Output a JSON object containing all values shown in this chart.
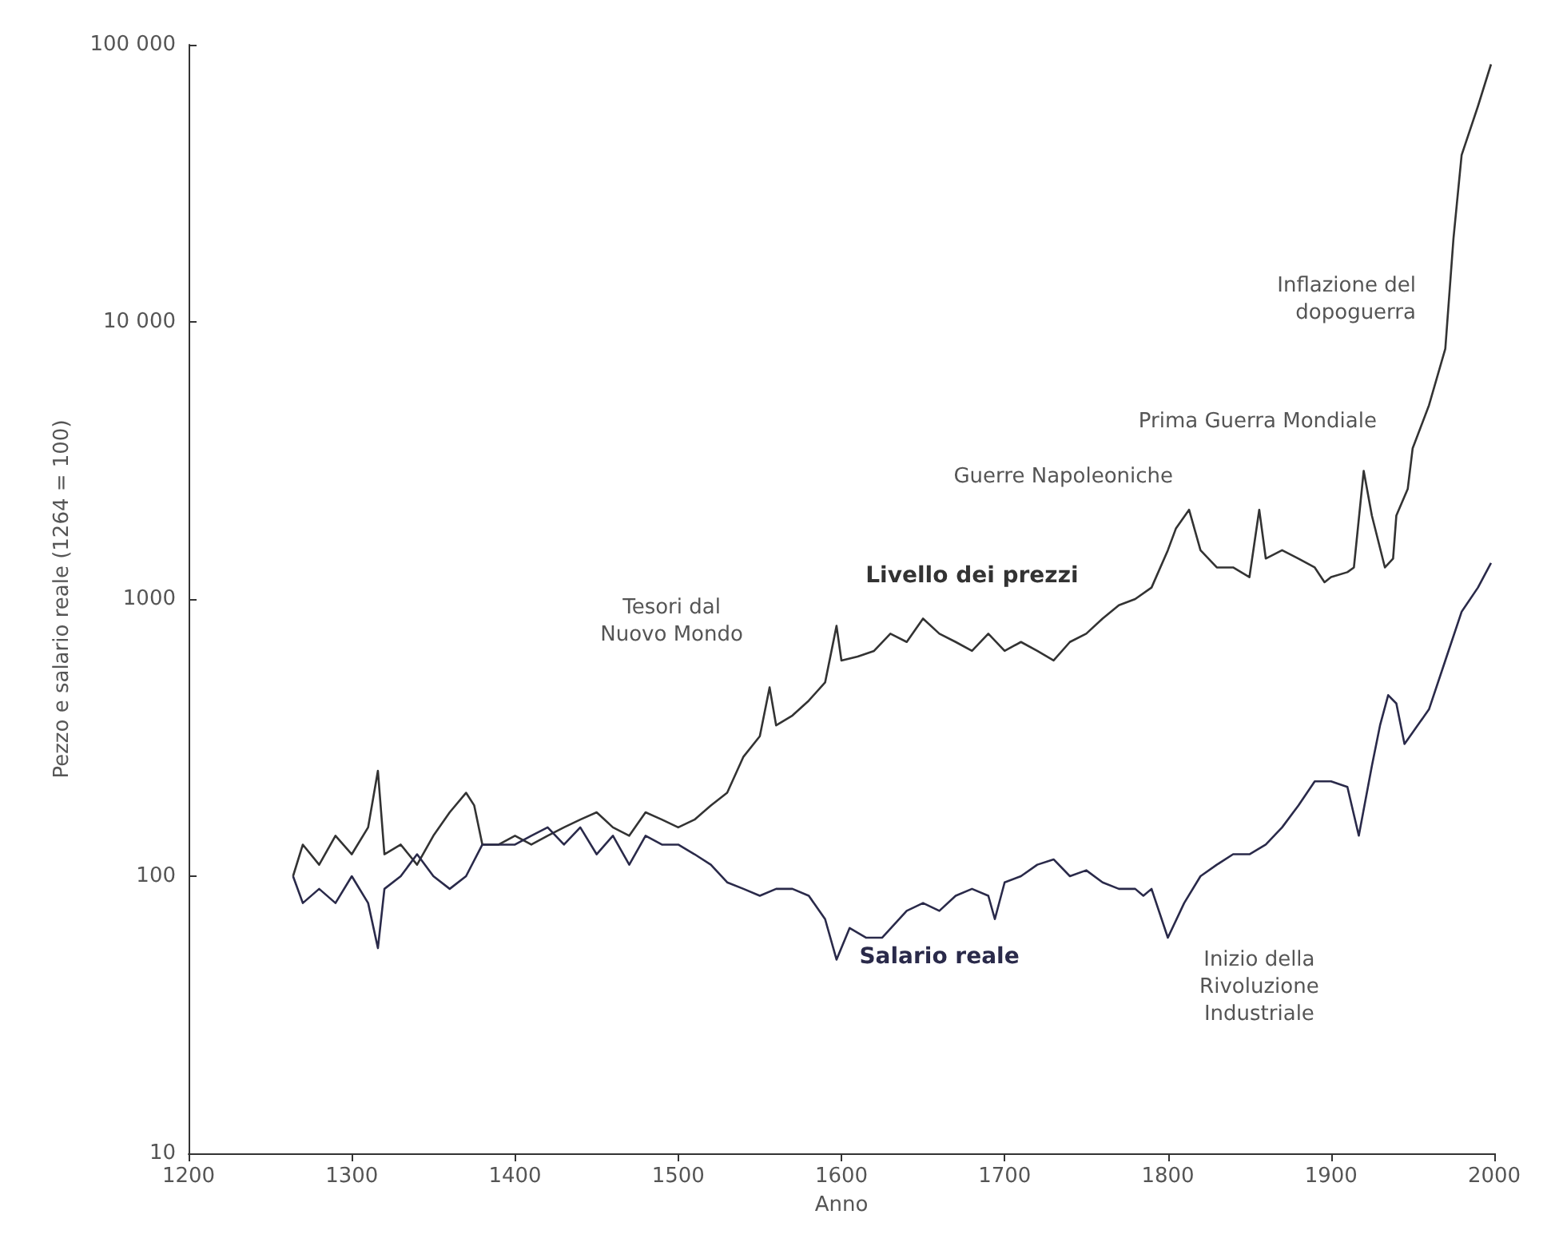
{
  "chart_data": {
    "type": "line",
    "xlabel": "Anno",
    "ylabel": "Pezzo e salario reale (1264 = 100)",
    "xlim": [
      1200,
      2000
    ],
    "xticks": [
      1200,
      1300,
      1400,
      1500,
      1600,
      1700,
      1800,
      1900,
      2000
    ],
    "ylim": [
      10,
      100000
    ],
    "yticks": [
      10,
      100,
      1000,
      {
        "value": 10000,
        "label": "10 000"
      },
      {
        "value": 100000,
        "label": "100 000"
      }
    ],
    "log": "y",
    "grid": false,
    "legend": false,
    "marker": "none",
    "line_style": "solid",
    "series": [
      {
        "name": "Livello dei prezzi",
        "color": "#333333",
        "x": [
          1264,
          1270,
          1280,
          1290,
          1300,
          1310,
          1316,
          1320,
          1330,
          1340,
          1350,
          1360,
          1370,
          1375,
          1380,
          1390,
          1400,
          1410,
          1420,
          1430,
          1440,
          1450,
          1460,
          1470,
          1480,
          1490,
          1500,
          1510,
          1520,
          1530,
          1540,
          1550,
          1556,
          1560,
          1570,
          1580,
          1590,
          1597,
          1600,
          1610,
          1620,
          1630,
          1640,
          1650,
          1660,
          1670,
          1680,
          1690,
          1700,
          1710,
          1720,
          1730,
          1740,
          1750,
          1760,
          1770,
          1780,
          1790,
          1800,
          1805,
          1813,
          1820,
          1830,
          1840,
          1850,
          1856,
          1860,
          1870,
          1880,
          1890,
          1896,
          1900,
          1910,
          1914,
          1920,
          1925,
          1933,
          1938,
          1940,
          1947,
          1950,
          1960,
          1970,
          1975,
          1980,
          1990,
          1998
        ],
        "values": [
          100,
          130,
          110,
          140,
          120,
          150,
          240,
          120,
          130,
          110,
          140,
          170,
          200,
          180,
          130,
          130,
          140,
          130,
          140,
          150,
          160,
          170,
          150,
          140,
          170,
          160,
          150,
          160,
          180,
          200,
          270,
          320,
          480,
          350,
          380,
          430,
          500,
          800,
          600,
          620,
          650,
          750,
          700,
          850,
          750,
          700,
          650,
          750,
          650,
          700,
          650,
          600,
          700,
          750,
          850,
          950,
          1000,
          1100,
          1500,
          1800,
          2100,
          1500,
          1300,
          1300,
          1200,
          2100,
          1400,
          1500,
          1400,
          1300,
          1150,
          1200,
          1250,
          1300,
          2900,
          2000,
          1300,
          1400,
          2000,
          2500,
          3500,
          5000,
          8000,
          20000,
          40000,
          60000,
          85000
        ]
      },
      {
        "name": "Salario reale",
        "color": "#2a2a4a",
        "x": [
          1264,
          1270,
          1280,
          1290,
          1300,
          1310,
          1316,
          1320,
          1330,
          1340,
          1350,
          1360,
          1370,
          1380,
          1390,
          1400,
          1410,
          1420,
          1430,
          1440,
          1450,
          1460,
          1470,
          1480,
          1490,
          1500,
          1510,
          1520,
          1530,
          1540,
          1550,
          1560,
          1570,
          1580,
          1590,
          1597,
          1605,
          1615,
          1625,
          1640,
          1650,
          1660,
          1670,
          1680,
          1690,
          1694,
          1700,
          1710,
          1720,
          1730,
          1740,
          1750,
          1760,
          1770,
          1780,
          1785,
          1790,
          1800,
          1810,
          1820,
          1830,
          1840,
          1850,
          1860,
          1870,
          1880,
          1890,
          1900,
          1910,
          1917,
          1925,
          1930,
          1935,
          1940,
          1945,
          1950,
          1960,
          1970,
          1980,
          1990,
          1998
        ],
        "values": [
          100,
          80,
          90,
          80,
          100,
          80,
          55,
          90,
          100,
          120,
          100,
          90,
          100,
          130,
          130,
          130,
          140,
          150,
          130,
          150,
          120,
          140,
          110,
          140,
          130,
          130,
          120,
          110,
          95,
          90,
          85,
          90,
          90,
          85,
          70,
          50,
          65,
          60,
          60,
          75,
          80,
          75,
          85,
          90,
          85,
          70,
          95,
          100,
          110,
          115,
          100,
          105,
          95,
          90,
          90,
          85,
          90,
          60,
          80,
          100,
          110,
          120,
          120,
          130,
          150,
          180,
          220,
          220,
          210,
          140,
          250,
          350,
          450,
          420,
          300,
          330,
          400,
          600,
          900,
          1100,
          1350
        ]
      }
    ],
    "annotations": [
      "Tesori dal\nNuovo Mondo",
      "Guerre Napoleoniche",
      "Prima Guerra Mondiale",
      "Inflazione del\ndopoguerra",
      "Inizio della\nRivoluzione\nIndustriale"
    ]
  }
}
